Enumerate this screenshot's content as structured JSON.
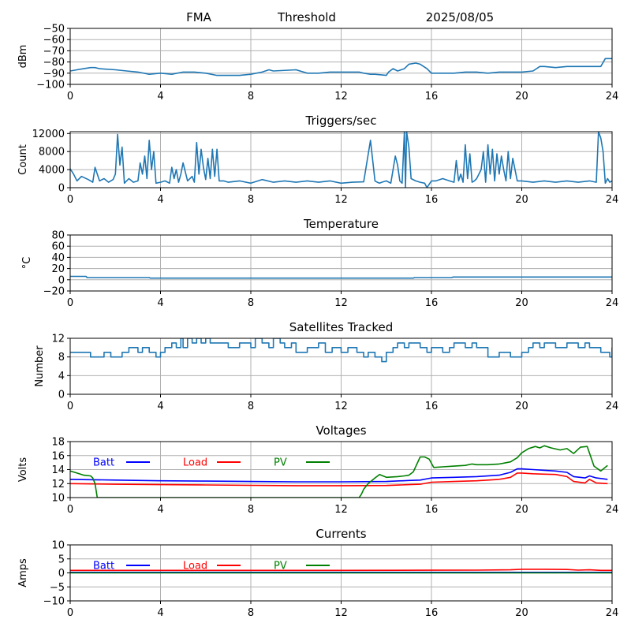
{
  "header": {
    "station": "FMA",
    "label": "Threshold",
    "date": "2025/08/05"
  },
  "colors": {
    "series_default": "#1f77b4",
    "batt": "#0000ff",
    "load": "#ff0000",
    "pv": "#008000",
    "grid": "#b0b0b0",
    "axis": "#000000"
  },
  "chart_data": [
    {
      "id": "threshold",
      "type": "line",
      "title": "",
      "ylabel": "dBm",
      "xlim": [
        0,
        24
      ],
      "ylim": [
        -100,
        -50
      ],
      "xticks": [
        0,
        4,
        8,
        12,
        16,
        20,
        24
      ],
      "yticks": [
        -100,
        -90,
        -80,
        -70,
        -60,
        -50
      ],
      "grid": true,
      "series": [
        {
          "color": "#1f77b4",
          "x": [
            0,
            0.3,
            0.6,
            0.9,
            1.1,
            1.3,
            2.0,
            2.5,
            3.0,
            3.5,
            4.0,
            4.5,
            5.0,
            5.5,
            6.0,
            6.5,
            7.0,
            7.5,
            8.0,
            8.5,
            8.8,
            9.0,
            10.0,
            10.5,
            11.0,
            11.5,
            12.0,
            12.5,
            12.8,
            13.0,
            13.3,
            13.5,
            14.0,
            14.1,
            14.3,
            14.5,
            14.8,
            15.0,
            15.3,
            15.5,
            15.8,
            16.0,
            16.5,
            17.0,
            17.5,
            18.0,
            18.5,
            19.0,
            19.5,
            20.0,
            20.5,
            20.8,
            21.0,
            21.5,
            22.0,
            22.5,
            23.0,
            23.5,
            23.7,
            24.0
          ],
          "y": [
            -88,
            -87,
            -86,
            -85,
            -85,
            -86,
            -87,
            -88,
            -89,
            -91,
            -90,
            -91,
            -89,
            -89,
            -90,
            -92,
            -92,
            -92,
            -91,
            -89,
            -87,
            -88,
            -87,
            -90,
            -90,
            -89,
            -89,
            -89,
            -89,
            -90,
            -91,
            -91,
            -92,
            -89,
            -86,
            -88,
            -86,
            -82,
            -81,
            -82,
            -86,
            -90,
            -90,
            -90,
            -89,
            -89,
            -90,
            -89,
            -89,
            -89,
            -88,
            -84,
            -84,
            -85,
            -84,
            -84,
            -84,
            -84,
            -77,
            -77
          ]
        }
      ]
    },
    {
      "id": "triggers",
      "type": "line",
      "title": "Triggers/sec",
      "ylabel": "Count",
      "xlim": [
        0,
        24
      ],
      "ylim": [
        0,
        12400
      ],
      "xticks": [
        0,
        4,
        8,
        12,
        16,
        20,
        24
      ],
      "yticks": [
        0,
        4000,
        8000,
        12000
      ],
      "grid": true,
      "series": [
        {
          "color": "#1f77b4",
          "x": [
            0,
            0.15,
            0.3,
            0.5,
            0.8,
            1.0,
            1.1,
            1.3,
            1.5,
            1.7,
            1.9,
            2.0,
            2.1,
            2.2,
            2.3,
            2.4,
            2.6,
            2.8,
            3.0,
            3.1,
            3.2,
            3.3,
            3.4,
            3.5,
            3.6,
            3.7,
            3.8,
            4.0,
            4.2,
            4.4,
            4.5,
            4.6,
            4.7,
            4.8,
            4.9,
            5.0,
            5.2,
            5.4,
            5.5,
            5.6,
            5.7,
            5.8,
            5.9,
            6.0,
            6.1,
            6.2,
            6.3,
            6.4,
            6.5,
            6.6,
            6.8,
            7.0,
            7.5,
            8.0,
            8.5,
            9.0,
            9.5,
            10.0,
            10.5,
            11.0,
            11.5,
            12.0,
            12.5,
            13.0,
            13.3,
            13.5,
            13.6,
            13.7,
            13.8,
            14.0,
            14.2,
            14.4,
            14.5,
            14.6,
            14.7,
            14.8,
            14.85,
            14.9,
            15.0,
            15.1,
            15.3,
            15.5,
            15.7,
            15.8,
            16.0,
            16.2,
            16.5,
            16.8,
            17.0,
            17.1,
            17.2,
            17.3,
            17.4,
            17.5,
            17.6,
            17.7,
            17.8,
            17.9,
            18.0,
            18.2,
            18.3,
            18.4,
            18.5,
            18.6,
            18.7,
            18.8,
            18.9,
            19.0,
            19.1,
            19.2,
            19.3,
            19.4,
            19.5,
            19.6,
            19.8,
            20.0,
            20.5,
            21.0,
            21.5,
            22.0,
            22.5,
            23.0,
            23.3,
            23.4,
            23.5,
            23.6,
            23.7,
            23.8,
            23.9,
            24.0
          ],
          "y": [
            4200,
            3000,
            1500,
            2500,
            1800,
            1200,
            4500,
            1500,
            2000,
            1200,
            1800,
            3000,
            11800,
            5000,
            9000,
            1000,
            2000,
            1200,
            1500,
            5500,
            3000,
            7000,
            2000,
            10500,
            4000,
            8000,
            1000,
            1200,
            1500,
            1000,
            4500,
            2000,
            4000,
            1200,
            3000,
            5500,
            1500,
            2500,
            1200,
            10000,
            3000,
            8500,
            4500,
            1800,
            6500,
            2000,
            8500,
            2500,
            8500,
            1500,
            1500,
            1200,
            1500,
            1000,
            1800,
            1200,
            1500,
            1200,
            1500,
            1200,
            1500,
            1000,
            1200,
            1300,
            10500,
            1500,
            1200,
            1000,
            1200,
            1500,
            1000,
            7000,
            5000,
            1500,
            1000,
            12400,
            0,
            12400,
            9000,
            2000,
            1500,
            1200,
            1000,
            0,
            1500,
            1500,
            2000,
            1500,
            1200,
            6000,
            1500,
            3000,
            1200,
            9500,
            2000,
            7500,
            1200,
            1500,
            2000,
            4000,
            8000,
            1200,
            9500,
            3000,
            8500,
            1500,
            7500,
            3000,
            7000,
            4000,
            1500,
            8000,
            2000,
            6500,
            1500,
            1500,
            1200,
            1500,
            1200,
            1500,
            1200,
            1500,
            1200,
            12400,
            11000,
            8000,
            1000,
            2000,
            1200,
            1500
          ]
        }
      ]
    },
    {
      "id": "temperature",
      "type": "line",
      "title": "Temperature",
      "ylabel": "°C",
      "xlim": [
        0,
        24
      ],
      "ylim": [
        -20,
        80
      ],
      "xticks": [
        0,
        4,
        8,
        12,
        16,
        20,
        24
      ],
      "yticks": [
        -20,
        0,
        20,
        40,
        60,
        80
      ],
      "grid": true,
      "series": [
        {
          "color": "#1f77b4",
          "x": [
            0,
            0.7,
            0.75,
            3.5,
            3.55,
            15.2,
            15.25,
            16.9,
            16.95,
            24
          ],
          "y": [
            6,
            6,
            4,
            4,
            3,
            3,
            4,
            4,
            5,
            5
          ]
        }
      ]
    },
    {
      "id": "satellites",
      "type": "line",
      "title": "Satellites Tracked",
      "ylabel": "Number",
      "xlim": [
        0,
        24
      ],
      "ylim": [
        0,
        12
      ],
      "xticks": [
        0,
        4,
        8,
        12,
        16,
        20,
        24
      ],
      "yticks": [
        0,
        4,
        8,
        12
      ],
      "grid": true,
      "step": true,
      "series": [
        {
          "color": "#1f77b4",
          "x": [
            0,
            0.8,
            0.9,
            1.5,
            1.8,
            2.3,
            2.6,
            3.0,
            3.2,
            3.5,
            3.8,
            4.0,
            4.2,
            4.5,
            4.7,
            4.9,
            5.0,
            5.2,
            5.4,
            5.6,
            5.8,
            6.0,
            6.2,
            7.0,
            7.5,
            8.0,
            8.2,
            8.5,
            8.8,
            9.0,
            9.3,
            9.5,
            9.8,
            10.0,
            10.5,
            11.0,
            11.3,
            11.6,
            12.0,
            12.3,
            12.7,
            13.0,
            13.2,
            13.5,
            13.8,
            14.0,
            14.3,
            14.5,
            14.8,
            15.0,
            15.5,
            15.8,
            16.0,
            16.5,
            16.8,
            17.0,
            17.5,
            17.8,
            18.0,
            18.5,
            19.0,
            19.5,
            20.0,
            20.3,
            20.5,
            20.8,
            21.0,
            21.5,
            22.0,
            22.5,
            22.8,
            23.0,
            23.5,
            23.9,
            24.0
          ],
          "y": [
            9,
            9,
            8,
            9,
            8,
            9,
            10,
            9,
            10,
            9,
            8,
            9,
            10,
            11,
            10,
            12,
            10,
            12,
            11,
            12,
            11,
            12,
            11,
            10,
            11,
            10,
            12,
            11,
            10,
            12,
            11,
            10,
            11,
            9,
            10,
            11,
            9,
            10,
            9,
            10,
            9,
            8,
            9,
            8,
            7,
            9,
            10,
            11,
            10,
            11,
            10,
            9,
            10,
            9,
            10,
            11,
            10,
            11,
            10,
            8,
            9,
            8,
            9,
            10,
            11,
            10,
            11,
            10,
            11,
            10,
            11,
            10,
            9,
            8,
            10
          ]
        }
      ]
    },
    {
      "id": "voltages",
      "type": "line",
      "title": "Voltages",
      "ylabel": "Volts",
      "xlim": [
        0,
        24
      ],
      "ylim": [
        10,
        18
      ],
      "xticks": [
        0,
        4,
        8,
        12,
        16,
        20,
        24
      ],
      "yticks": [
        10,
        12,
        14,
        16,
        18
      ],
      "grid": true,
      "legend": "inline-top",
      "series": [
        {
          "name": "Batt",
          "color": "#0000ff",
          "x": [
            0,
            2,
            4,
            6,
            8,
            10,
            12,
            14,
            15,
            15.5,
            16,
            17,
            18,
            19,
            19.5,
            19.8,
            20,
            20.5,
            21,
            21.5,
            22,
            22.3,
            22.8,
            23,
            23.3,
            23.8
          ],
          "y": [
            12.6,
            12.5,
            12.4,
            12.35,
            12.3,
            12.25,
            12.25,
            12.3,
            12.45,
            12.5,
            12.8,
            12.9,
            13.0,
            13.2,
            13.6,
            14.1,
            14.1,
            14.0,
            13.9,
            13.8,
            13.6,
            13.0,
            12.8,
            13.1,
            12.8,
            12.6
          ]
        },
        {
          "name": "Load",
          "color": "#ff0000",
          "x": [
            0,
            2,
            4,
            6,
            8,
            10,
            12,
            14,
            15,
            15.5,
            16,
            17,
            18,
            19,
            19.5,
            19.8,
            20,
            20.5,
            21,
            21.5,
            22,
            22.3,
            22.8,
            23,
            23.3,
            23.8
          ],
          "y": [
            12.0,
            11.9,
            11.85,
            11.8,
            11.75,
            11.7,
            11.7,
            11.72,
            11.85,
            11.9,
            12.2,
            12.3,
            12.4,
            12.6,
            12.9,
            13.5,
            13.5,
            13.4,
            13.35,
            13.3,
            13.0,
            12.3,
            12.1,
            12.6,
            12.1,
            12.0
          ]
        },
        {
          "name": "PV",
          "color": "#008000",
          "x": [
            0,
            0.3,
            0.6,
            0.9,
            1.0,
            1.1,
            1.15,
            1.2,
            12.8,
            12.9,
            13.0,
            13.2,
            13.5,
            13.7,
            14.0,
            14.5,
            14.8,
            15.0,
            15.2,
            15.5,
            15.7,
            15.9,
            16.1,
            16.5,
            17.0,
            17.5,
            17.8,
            18.0,
            18.5,
            19.0,
            19.5,
            19.8,
            20.0,
            20.3,
            20.6,
            20.8,
            21.0,
            21.3,
            21.7,
            22.0,
            22.3,
            22.6,
            22.9,
            23.2,
            23.5,
            23.8
          ],
          "y": [
            13.8,
            13.5,
            13.2,
            13.1,
            12.8,
            12.0,
            11.0,
            10.0,
            10.0,
            10.5,
            11.2,
            12.0,
            12.8,
            13.3,
            12.9,
            13.0,
            13.1,
            13.2,
            13.7,
            15.8,
            15.8,
            15.5,
            14.3,
            14.4,
            14.5,
            14.6,
            14.8,
            14.7,
            14.7,
            14.8,
            15.1,
            15.7,
            16.4,
            17.0,
            17.3,
            17.1,
            17.4,
            17.1,
            16.8,
            17.0,
            16.3,
            17.2,
            17.3,
            14.5,
            13.8,
            14.6
          ]
        }
      ]
    },
    {
      "id": "currents",
      "type": "line",
      "title": "Currents",
      "ylabel": "Amps",
      "xlim": [
        0,
        24
      ],
      "ylim": [
        -10,
        10
      ],
      "xticks": [
        0,
        4,
        8,
        12,
        16,
        20,
        24
      ],
      "yticks": [
        -10,
        -5,
        0,
        5,
        10
      ],
      "grid": true,
      "legend": "inline-top",
      "series": [
        {
          "name": "Batt",
          "color": "#0000ff",
          "x": [
            0,
            24
          ],
          "y": [
            0.2,
            0.2
          ]
        },
        {
          "name": "Load",
          "color": "#ff0000",
          "x": [
            0,
            4,
            8,
            12,
            16,
            18,
            19.5,
            20,
            21,
            22,
            22.5,
            23,
            23.5,
            24
          ],
          "y": [
            0.9,
            0.9,
            0.9,
            0.9,
            0.95,
            1.0,
            1.1,
            1.3,
            1.3,
            1.2,
            1.0,
            1.1,
            0.9,
            0.9
          ]
        },
        {
          "name": "PV",
          "color": "#008000",
          "x": [
            0,
            24
          ],
          "y": [
            0.0,
            0.0
          ]
        }
      ]
    }
  ]
}
